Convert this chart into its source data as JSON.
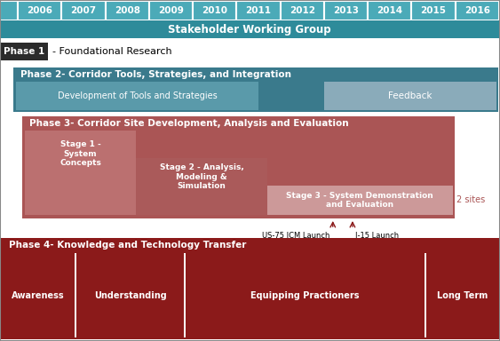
{
  "years": [
    "2006",
    "2007",
    "2008",
    "2009",
    "2010",
    "2011",
    "2012",
    "2013",
    "2014",
    "2015",
    "2016"
  ],
  "colors": {
    "year_cell_bg": "#4BAAB8",
    "year_cell_border": "#FFFFFF",
    "swg_bg": "#2E8B9A",
    "phase1_bg": "#2B2B2B",
    "phase2_bg": "#3A7A8C",
    "phase2_sub_bg": "#5A9AAA",
    "phase2_feedback_bg": "#8AABBA",
    "phase3_bg": "#AA5555",
    "stage1_bg": "#BB7070",
    "stage2_bg": "#AA5A5A",
    "stage3_bg": "#CC9999",
    "phase4_bg": "#8B1A1A",
    "launch_line": "#8B1A1A",
    "background": "#FFFFFF",
    "outer_border": "#888888"
  },
  "fig_width": 5.63,
  "fig_height": 3.84,
  "dpi": 100
}
